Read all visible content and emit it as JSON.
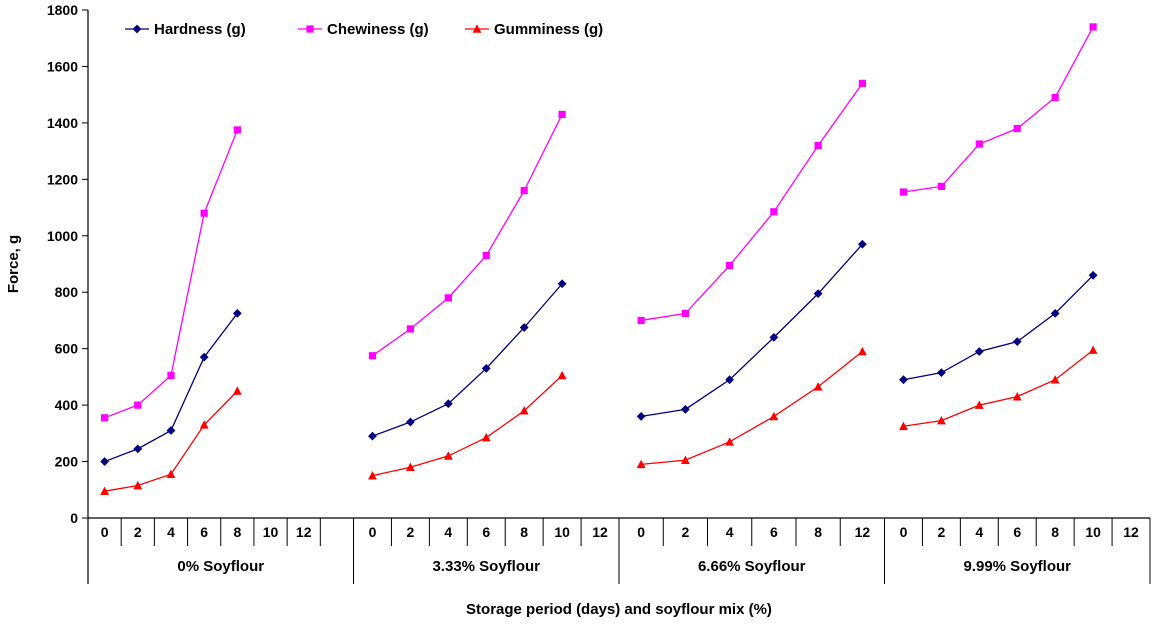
{
  "chart_data": {
    "type": "line",
    "title": "",
    "xlabel": "Storage period (days) and soyflour mix (%)",
    "ylabel": "Force, g",
    "ylim": [
      0,
      1800
    ],
    "ytick_step": 200,
    "grid": false,
    "legend_position": "top-left-horizontal",
    "legend": [
      {
        "name": "Hardness (g)",
        "color": "#000080",
        "marker": "diamond"
      },
      {
        "name": "Chewiness (g)",
        "color": "#FF00FF",
        "marker": "square"
      },
      {
        "name": "Gumminess (g)",
        "color": "#FF0000",
        "marker": "triangle"
      }
    ],
    "panels": [
      {
        "label": "0% Soyflour",
        "categories": [
          "0",
          "2",
          "4",
          "6",
          "8",
          "10",
          "12",
          ""
        ],
        "series": [
          {
            "name": "Hardness (g)",
            "values": [
              200,
              245,
              310,
              570,
              725
            ]
          },
          {
            "name": "Chewiness (g)",
            "values": [
              355,
              400,
              505,
              1080,
              1375
            ]
          },
          {
            "name": "Gumminess (g)",
            "values": [
              95,
              115,
              155,
              330,
              450
            ]
          }
        ]
      },
      {
        "label": "3.33% Soyflour",
        "categories": [
          "0",
          "2",
          "4",
          "6",
          "8",
          "10",
          "12"
        ],
        "series": [
          {
            "name": "Hardness (g)",
            "values": [
              290,
              340,
              405,
              530,
              675,
              830
            ]
          },
          {
            "name": "Chewiness (g)",
            "values": [
              575,
              670,
              780,
              930,
              1160,
              1430
            ]
          },
          {
            "name": "Gumminess (g)",
            "values": [
              150,
              180,
              220,
              285,
              380,
              505
            ]
          }
        ]
      },
      {
        "label": "6.66% Soyflour",
        "categories": [
          "0",
          "2",
          "4",
          "6",
          "8",
          "12"
        ],
        "series": [
          {
            "name": "Hardness (g)",
            "values": [
              360,
              385,
              490,
              640,
              795,
              970
            ]
          },
          {
            "name": "Chewiness (g)",
            "values": [
              700,
              725,
              895,
              1085,
              1320,
              1540
            ]
          },
          {
            "name": "Gumminess (g)",
            "values": [
              190,
              205,
              270,
              360,
              465,
              590
            ]
          }
        ]
      },
      {
        "label": "9.99% Soyflour",
        "categories": [
          "0",
          "2",
          "4",
          "6",
          "8",
          "10",
          "12"
        ],
        "series": [
          {
            "name": "Hardness (g)",
            "values": [
              490,
              515,
              590,
              625,
              725,
              860
            ]
          },
          {
            "name": "Chewiness (g)",
            "values": [
              1155,
              1175,
              1325,
              1380,
              1490,
              1740
            ]
          },
          {
            "name": "Gumminess (g)",
            "values": [
              325,
              345,
              400,
              430,
              490,
              595
            ]
          }
        ]
      }
    ]
  }
}
